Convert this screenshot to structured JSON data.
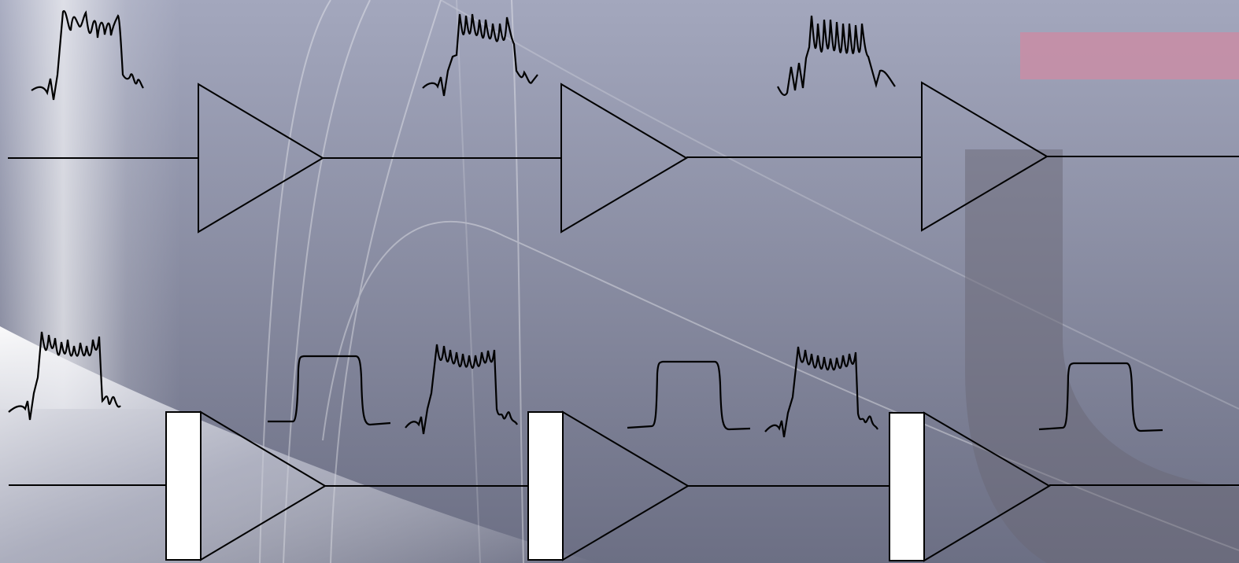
{
  "diagram": {
    "rows": [
      {
        "name": "amplifier-chain-without-regeneration",
        "stages": [
          {
            "component": "amplifier",
            "input_waveform": "distorted-pulse"
          },
          {
            "component": "amplifier",
            "input_waveform": "more-distorted-pulse"
          },
          {
            "component": "amplifier",
            "input_waveform": "heavily-distorted-pulse"
          }
        ]
      },
      {
        "name": "repeater-chain-with-regeneration",
        "stages": [
          {
            "component": "regenerator-amplifier",
            "input_waveform": "distorted-pulse",
            "output_waveform": "clean-square-pulse"
          },
          {
            "component": "regenerator-amplifier",
            "input_waveform": "distorted-pulse",
            "output_waveform": "clean-square-pulse"
          },
          {
            "component": "regenerator-amplifier",
            "input_waveform": "distorted-pulse",
            "output_waveform": "clean-square-pulse"
          }
        ]
      }
    ],
    "colors": {
      "background_top": "#a2a6bc",
      "background_bottom": "#6e7186",
      "line": "#000000",
      "regenerator_box": "#ffffff",
      "accent_bar": "#c68ea6",
      "watermark": "#6a6775"
    },
    "icons": [
      "amplifier-triangle-icon",
      "regenerator-box-icon",
      "pulse-waveform-icon"
    ]
  }
}
